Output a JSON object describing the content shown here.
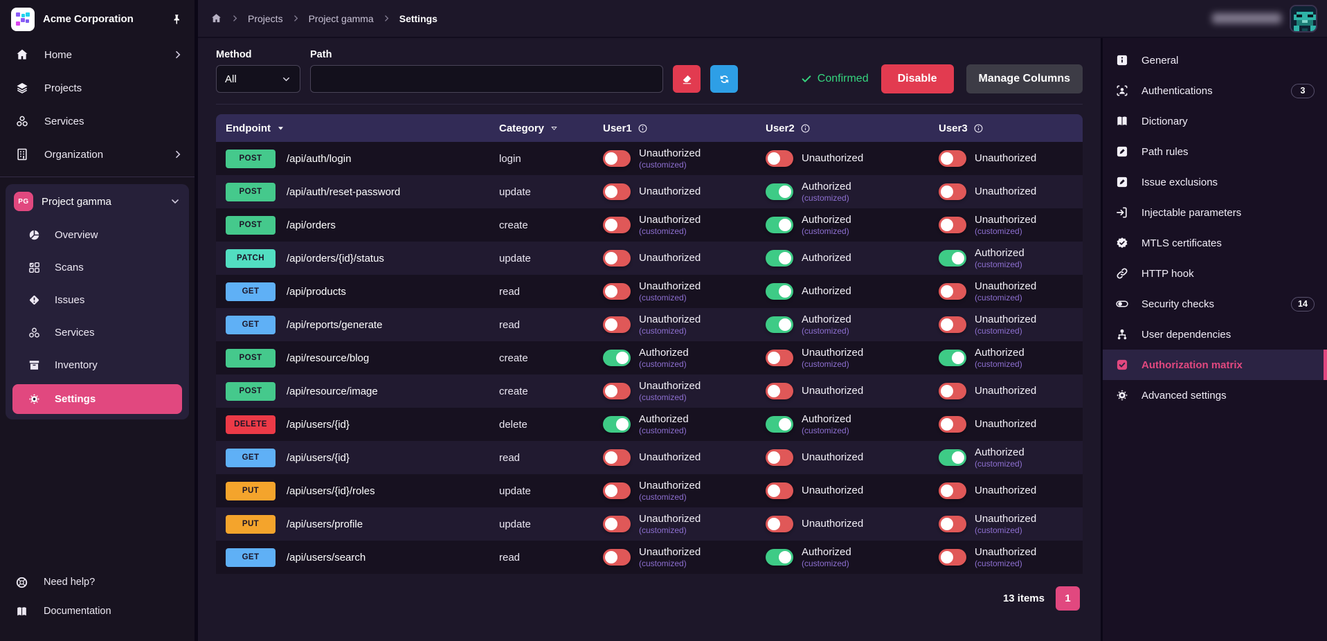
{
  "colors": {
    "accent": "#e1487f",
    "toggle_green": "#3ecb86",
    "toggle_red": "#e05858",
    "green_text": "#35d57e",
    "button_red": "#e23b50",
    "button_blue": "#2e9fe6",
    "methods": {
      "POST": "#45c98c",
      "PATCH": "#52dec1",
      "GET": "#5fb0f6",
      "DELETE": "#ec3a47",
      "PUT": "#f4a42c"
    }
  },
  "sidebar": {
    "org_name": "Acme Corporation",
    "items": [
      {
        "label": "Home",
        "icon": "home",
        "chevron": true
      },
      {
        "label": "Projects",
        "icon": "layers",
        "chevron": false
      },
      {
        "label": "Services",
        "icon": "cluster",
        "chevron": false
      },
      {
        "label": "Organization",
        "icon": "building",
        "chevron": true
      }
    ],
    "project": {
      "initials": "PG",
      "name": "Project gamma"
    },
    "project_items": [
      {
        "label": "Overview",
        "icon": "pie",
        "active": false
      },
      {
        "label": "Scans",
        "icon": "grid-check",
        "active": false
      },
      {
        "label": "Issues",
        "icon": "diamond-alert",
        "active": false
      },
      {
        "label": "Services",
        "icon": "cluster",
        "active": false
      },
      {
        "label": "Inventory",
        "icon": "box",
        "active": false
      },
      {
        "label": "Settings",
        "icon": "gear",
        "active": true
      }
    ],
    "footer_items": [
      {
        "label": "Need help?",
        "icon": "lifebuoy"
      },
      {
        "label": "Documentation",
        "icon": "book"
      }
    ]
  },
  "breadcrumb": {
    "items": [
      "Projects",
      "Project gamma",
      "Settings"
    ]
  },
  "filters": {
    "method_label": "Method",
    "method_value": "All",
    "path_label": "Path",
    "path_value": "",
    "confirmed_label": "Confirmed",
    "disable_label": "Disable",
    "manage_columns_label": "Manage Columns"
  },
  "table": {
    "columns": [
      "Endpoint",
      "Category",
      "User1",
      "User2",
      "User3"
    ],
    "authorized_label": "Authorized",
    "unauthorized_label": "Unauthorized",
    "customized_label": "(customized)",
    "rows": [
      {
        "method": "POST",
        "path": "/api/auth/login",
        "category": "login",
        "users": [
          {
            "authorized": false,
            "customized": true
          },
          {
            "authorized": false,
            "customized": false
          },
          {
            "authorized": false,
            "customized": false
          }
        ]
      },
      {
        "method": "POST",
        "path": "/api/auth/reset-password",
        "category": "update",
        "users": [
          {
            "authorized": false,
            "customized": false
          },
          {
            "authorized": true,
            "customized": true
          },
          {
            "authorized": false,
            "customized": false
          }
        ]
      },
      {
        "method": "POST",
        "path": "/api/orders",
        "category": "create",
        "users": [
          {
            "authorized": false,
            "customized": true
          },
          {
            "authorized": true,
            "customized": true
          },
          {
            "authorized": false,
            "customized": true
          }
        ]
      },
      {
        "method": "PATCH",
        "path": "/api/orders/{id}/status",
        "category": "update",
        "users": [
          {
            "authorized": false,
            "customized": false
          },
          {
            "authorized": true,
            "customized": false
          },
          {
            "authorized": true,
            "customized": true
          }
        ]
      },
      {
        "method": "GET",
        "path": "/api/products",
        "category": "read",
        "users": [
          {
            "authorized": false,
            "customized": true
          },
          {
            "authorized": true,
            "customized": false
          },
          {
            "authorized": false,
            "customized": true
          }
        ]
      },
      {
        "method": "GET",
        "path": "/api/reports/generate",
        "category": "read",
        "users": [
          {
            "authorized": false,
            "customized": true
          },
          {
            "authorized": true,
            "customized": true
          },
          {
            "authorized": false,
            "customized": true
          }
        ]
      },
      {
        "method": "POST",
        "path": "/api/resource/blog",
        "category": "create",
        "users": [
          {
            "authorized": true,
            "customized": true
          },
          {
            "authorized": false,
            "customized": true
          },
          {
            "authorized": true,
            "customized": true
          }
        ]
      },
      {
        "method": "POST",
        "path": "/api/resource/image",
        "category": "create",
        "users": [
          {
            "authorized": false,
            "customized": true
          },
          {
            "authorized": false,
            "customized": false
          },
          {
            "authorized": false,
            "customized": false
          }
        ]
      },
      {
        "method": "DELETE",
        "path": "/api/users/{id}",
        "category": "delete",
        "users": [
          {
            "authorized": true,
            "customized": true
          },
          {
            "authorized": true,
            "customized": true
          },
          {
            "authorized": false,
            "customized": false
          }
        ]
      },
      {
        "method": "GET",
        "path": "/api/users/{id}",
        "category": "read",
        "users": [
          {
            "authorized": false,
            "customized": false
          },
          {
            "authorized": false,
            "customized": false
          },
          {
            "authorized": true,
            "customized": true
          }
        ]
      },
      {
        "method": "PUT",
        "path": "/api/users/{id}/roles",
        "category": "update",
        "users": [
          {
            "authorized": false,
            "customized": true
          },
          {
            "authorized": false,
            "customized": false
          },
          {
            "authorized": false,
            "customized": false
          }
        ]
      },
      {
        "method": "PUT",
        "path": "/api/users/profile",
        "category": "update",
        "users": [
          {
            "authorized": false,
            "customized": true
          },
          {
            "authorized": false,
            "customized": false
          },
          {
            "authorized": false,
            "customized": true
          }
        ]
      },
      {
        "method": "GET",
        "path": "/api/users/search",
        "category": "read",
        "users": [
          {
            "authorized": false,
            "customized": true
          },
          {
            "authorized": true,
            "customized": true
          },
          {
            "authorized": false,
            "customized": true
          }
        ]
      }
    ]
  },
  "pagination": {
    "count_label": "13 items",
    "page": "1"
  },
  "right_sidebar": {
    "items": [
      {
        "label": "General",
        "icon": "info-square",
        "badge": null,
        "active": false
      },
      {
        "label": "Authentications",
        "icon": "id-person",
        "badge": "3",
        "active": false
      },
      {
        "label": "Dictionary",
        "icon": "book-filled",
        "badge": null,
        "active": false
      },
      {
        "label": "Path rules",
        "icon": "edit-square",
        "badge": null,
        "active": false
      },
      {
        "label": "Issue exclusions",
        "icon": "edit-square",
        "badge": null,
        "active": false
      },
      {
        "label": "Injectable parameters",
        "icon": "arrow-bracket",
        "badge": null,
        "active": false
      },
      {
        "label": "MTLS certificates",
        "icon": "badge-check",
        "badge": null,
        "active": false
      },
      {
        "label": "HTTP hook",
        "icon": "link",
        "badge": null,
        "active": false
      },
      {
        "label": "Security checks",
        "icon": "toggle",
        "badge": "14",
        "active": false
      },
      {
        "label": "User dependencies",
        "icon": "user-tree",
        "badge": null,
        "active": false
      },
      {
        "label": "Authorization matrix",
        "icon": "checkbox",
        "badge": null,
        "active": true
      },
      {
        "label": "Advanced settings",
        "icon": "gear",
        "badge": null,
        "active": false
      }
    ]
  }
}
